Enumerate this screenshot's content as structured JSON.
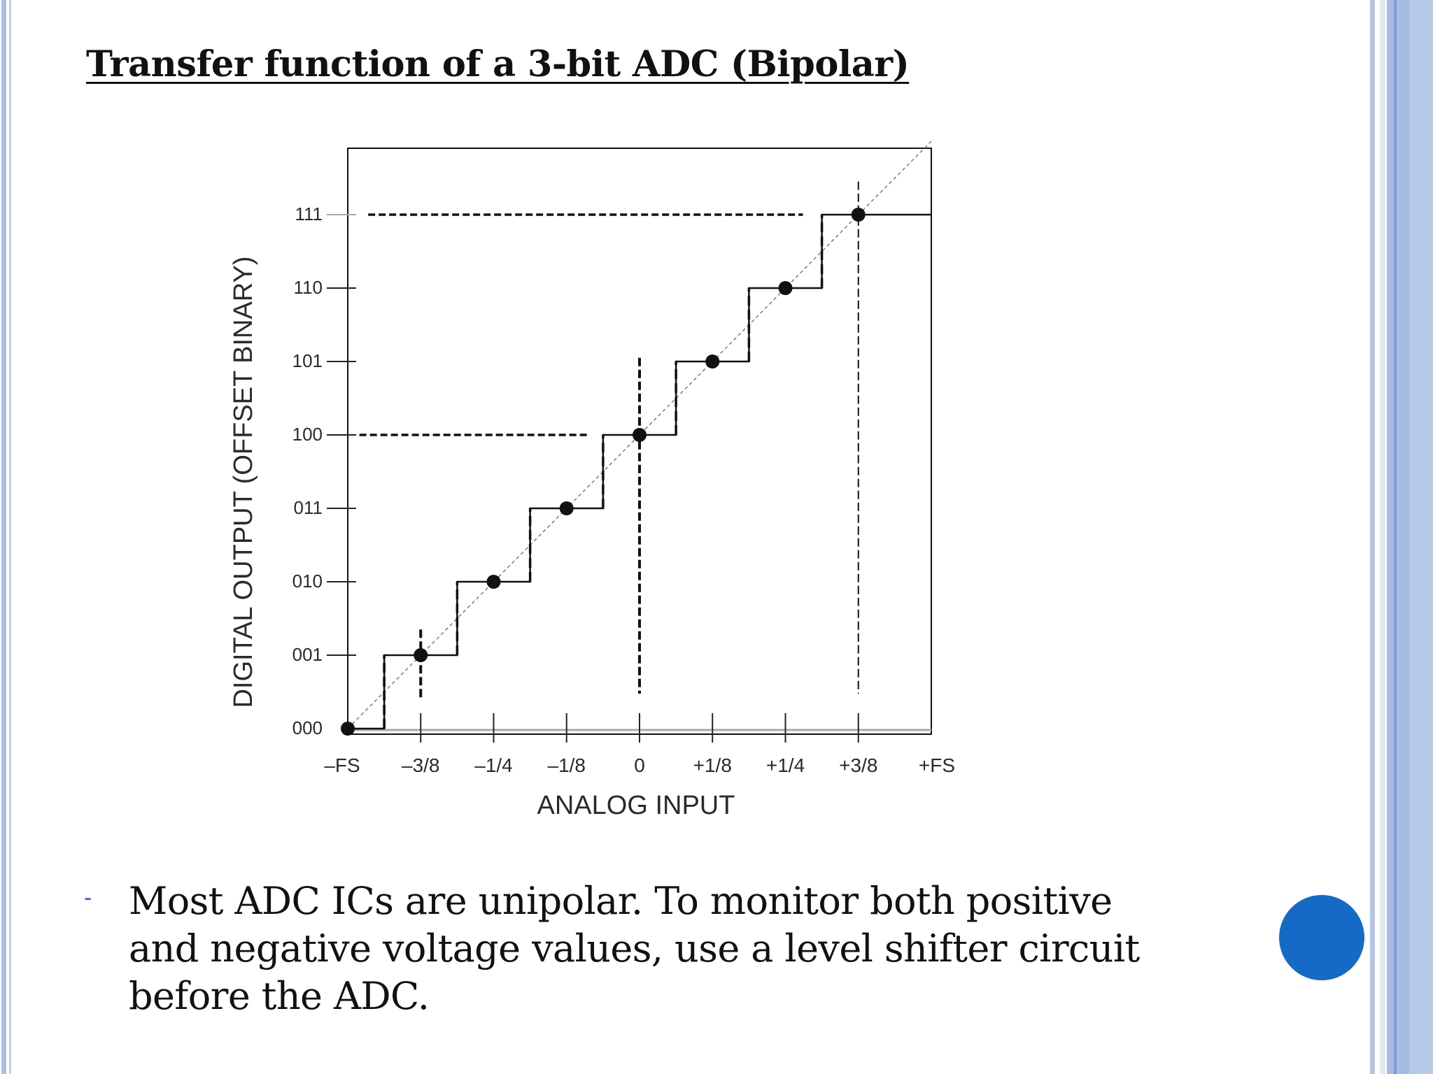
{
  "slide": {
    "title": "Transfer function of a 3-bit ADC (Bipolar)",
    "bullet": {
      "marker": "-",
      "text": "Most ADC ICs are unipolar. To monitor both positive and negative voltage values, use a level shifter circuit before the ADC."
    }
  },
  "colors": {
    "accent_circle": "#1569c7",
    "border_blue": "#a8bce2"
  },
  "chart_data": {
    "type": "line",
    "xlabel": "ANALOG INPUT",
    "ylabel": "DIGITAL OUTPUT (OFFSET BINARY)",
    "x_ticks": [
      {
        "value": -1,
        "label": "–FS"
      },
      {
        "value": -0.75,
        "label": "–3/8"
      },
      {
        "value": -0.5,
        "label": "–1/4"
      },
      {
        "value": -0.25,
        "label": "–1/8"
      },
      {
        "value": 0,
        "label": "0"
      },
      {
        "value": 0.25,
        "label": "+1/8"
      },
      {
        "value": 0.5,
        "label": "+1/4"
      },
      {
        "value": 0.75,
        "label": "+3/8"
      },
      {
        "value": 1,
        "label": "+FS"
      }
    ],
    "y_ticks": [
      "000",
      "001",
      "010",
      "011",
      "100",
      "101",
      "110",
      "111"
    ],
    "xlim": [
      -1,
      1
    ],
    "ylim": [
      0,
      7.5
    ],
    "grid": false,
    "series": [
      {
        "style": "staircase",
        "points": [
          {
            "x": -1,
            "y": 0
          },
          {
            "x": -0.75,
            "y": 1
          },
          {
            "x": -0.5,
            "y": 2
          },
          {
            "x": -0.25,
            "y": 3
          },
          {
            "x": 0,
            "y": 4
          },
          {
            "x": 0.25,
            "y": 5
          },
          {
            "x": 0.5,
            "y": 6
          },
          {
            "x": 0.75,
            "y": 7
          }
        ]
      },
      {
        "style": "ideal-diagonal",
        "points": [
          {
            "x": -1,
            "y": 0
          },
          {
            "x": 1,
            "y": 8
          }
        ]
      }
    ]
  }
}
